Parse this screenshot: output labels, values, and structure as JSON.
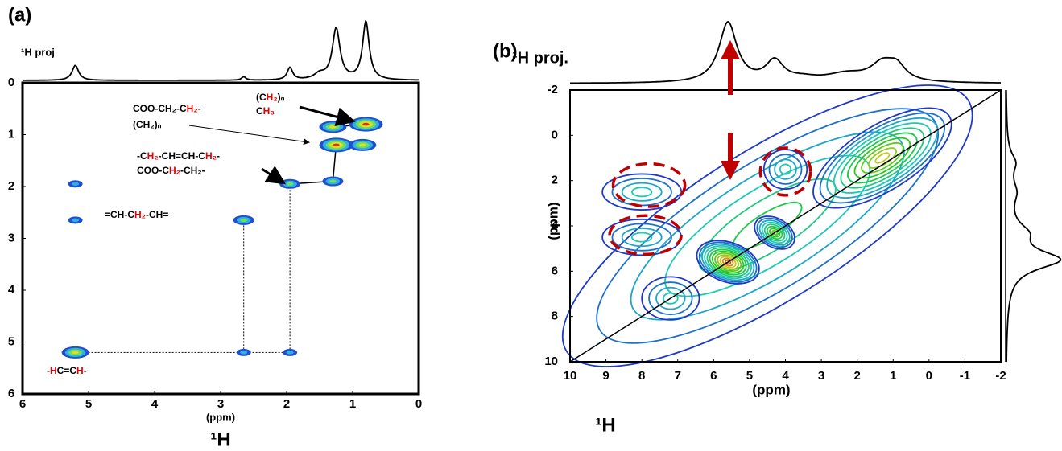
{
  "chart_data": [
    {
      "type": "nmr2d",
      "panel": "(a)",
      "projection_label": "¹H proj",
      "xlabel": "(ppm)",
      "xlabel2": "¹H",
      "xlim": [
        6,
        0
      ],
      "ylim": [
        0,
        6
      ],
      "xticks": [
        6,
        5,
        4,
        3,
        2,
        1,
        0
      ],
      "yticks": [
        0,
        1,
        2,
        3,
        4,
        5,
        6
      ],
      "peaks": {
        "x": [
          5.2,
          5.2,
          5.2,
          2.65,
          2.65,
          1.95,
          1.95,
          1.3,
          1.25,
          0.8,
          0.85,
          1.3
        ],
        "y": [
          1.95,
          2.65,
          5.2,
          2.65,
          5.2,
          1.95,
          5.2,
          1.9,
          1.2,
          0.8,
          1.2,
          0.85
        ],
        "levels": [
          1,
          1,
          3,
          2,
          1,
          2,
          1,
          2,
          4,
          4,
          3,
          3
        ]
      },
      "projection": {
        "positions": [
          5.2,
          2.65,
          1.95,
          1.5,
          1.25,
          0.8
        ],
        "heights": [
          0.22,
          0.05,
          0.18,
          0.08,
          0.75,
          0.85
        ],
        "widths": [
          0.06,
          0.04,
          0.05,
          0.1,
          0.07,
          0.06
        ]
      },
      "annotations": [
        {
          "lines": [
            [
              "(C",
              "H₂",
              ")ₙ"
            ],
            [
              "C",
              "H₃"
            ]
          ]
        },
        {
          "lines": [
            [
              "COO-CH₂-C",
              "H₂",
              "-"
            ],
            [
              "(CH₂)ₙ"
            ]
          ]
        },
        {
          "lines": [
            [
              "-C",
              "H₂",
              "-CH=CH-C",
              "H₂",
              "-"
            ],
            [
              "COO-C",
              "H₂",
              "-CH₂-"
            ]
          ]
        },
        {
          "lines": [
            [
              "=CH-C",
              "H₂",
              "-CH="
            ]
          ]
        },
        {
          "lines": [
            [
              "-",
              "H",
              "C=C",
              "H",
              "-"
            ]
          ]
        }
      ]
    },
    {
      "type": "contour",
      "panel": "(b)",
      "projection_label": "¹H proj.",
      "xlabel": "(ppm)",
      "xlabel2": "¹H",
      "ylabel": "(ppm)",
      "xlim": [
        10,
        -2
      ],
      "ylim": [
        -2,
        10
      ],
      "xticks": [
        10,
        9,
        8,
        7,
        6,
        5,
        4,
        3,
        2,
        1,
        0,
        -1,
        -2
      ],
      "yticks": [
        -2,
        0,
        2,
        4,
        6,
        8,
        10
      ],
      "peaks": {
        "x": [
          4.5,
          1.3,
          5.6,
          4.3,
          7.2,
          8.0,
          8.0,
          4.0
        ],
        "y": [
          4.0,
          1.0,
          5.6,
          4.3,
          7.2,
          2.5,
          4.5,
          1.5
        ],
        "rx": [
          6.6,
          2.2,
          0.55,
          0.4,
          0.8,
          1.1,
          1.1,
          0.6
        ],
        "ry": [
          2.1,
          0.9,
          0.9,
          0.6,
          0.6,
          0.5,
          0.5,
          0.55
        ],
        "tilt": [
          -32,
          -32,
          -70,
          -60,
          0,
          0,
          0,
          0
        ],
        "levels": [
          6,
          10,
          12,
          8,
          4,
          4,
          4,
          4
        ]
      },
      "highlights": {
        "x": [
          7.8,
          7.9,
          4.0
        ],
        "y": [
          2.2,
          4.4,
          1.6
        ],
        "rx": [
          1.0,
          1.0,
          0.7
        ],
        "ry": [
          0.5,
          0.45,
          0.55
        ]
      },
      "projection": {
        "positions": [
          5.6,
          4.3,
          3.5,
          2.3,
          1.3,
          0.9
        ],
        "heights": [
          0.88,
          0.3,
          0.05,
          0.12,
          0.25,
          0.2
        ],
        "widths": [
          0.3,
          0.3,
          0.5,
          0.7,
          0.4,
          0.3
        ]
      },
      "side_projection": {
        "positions": [
          5.5,
          4.3,
          2.5,
          1.2
        ],
        "heights": [
          1.0,
          0.3,
          0.15,
          0.15
        ],
        "widths": [
          0.5,
          0.5,
          0.6,
          0.5
        ]
      }
    }
  ]
}
